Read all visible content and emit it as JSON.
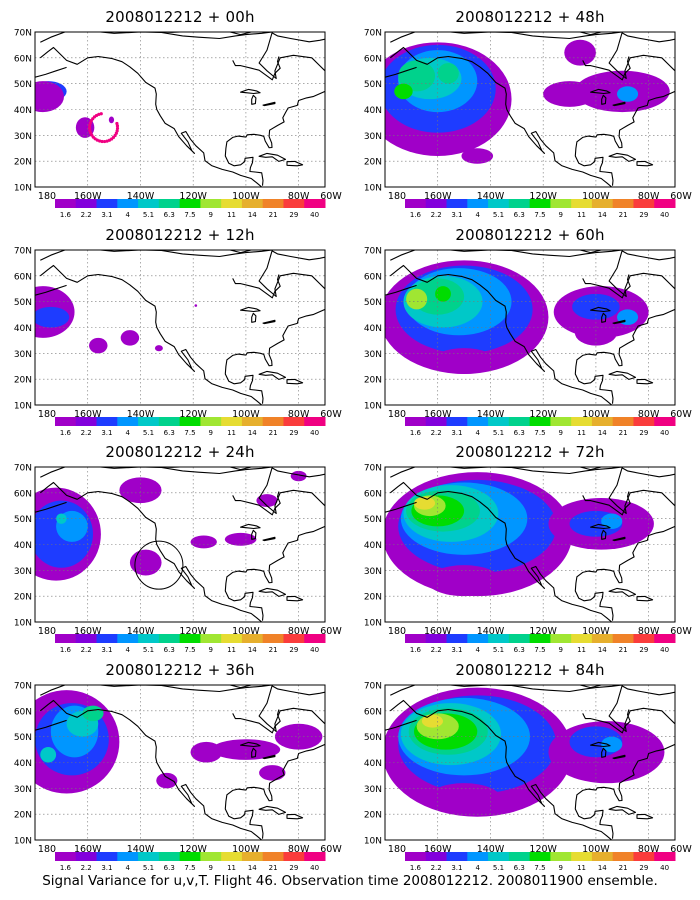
{
  "panels": [
    {
      "title": "2008012212 + 00h"
    },
    {
      "title": "2008012212 + 48h"
    },
    {
      "title": "2008012212 + 12h"
    },
    {
      "title": "2008012212 + 60h"
    },
    {
      "title": "2008012212 + 24h"
    },
    {
      "title": "2008012212 + 72h"
    },
    {
      "title": "2008012212 + 36h"
    },
    {
      "title": "2008012212 + 84h"
    }
  ],
  "lat_labels": [
    "70N",
    "60N",
    "50N",
    "40N",
    "30N",
    "20N",
    "10N"
  ],
  "lon_labels": [
    "180",
    "160W",
    "140W",
    "120W",
    "100W",
    "80W",
    "60W"
  ],
  "colorbar": {
    "colors": [
      "#a000c8",
      "#8200dc",
      "#1e3cff",
      "#0096ff",
      "#00c8c8",
      "#00d28c",
      "#00dc00",
      "#a0e632",
      "#e6dc32",
      "#e6af2d",
      "#f08228",
      "#fa3c3c",
      "#f00082"
    ],
    "labels": [
      "1.6",
      "2.2",
      "3.1",
      "4",
      "5.1",
      "6.3",
      "7.5",
      "9",
      "11",
      "14",
      "21",
      "29",
      "40"
    ]
  },
  "caption": "Signal Variance for u,v,T. Flight 46. Observation time 2008012212. 2008011900 ensemble."
}
